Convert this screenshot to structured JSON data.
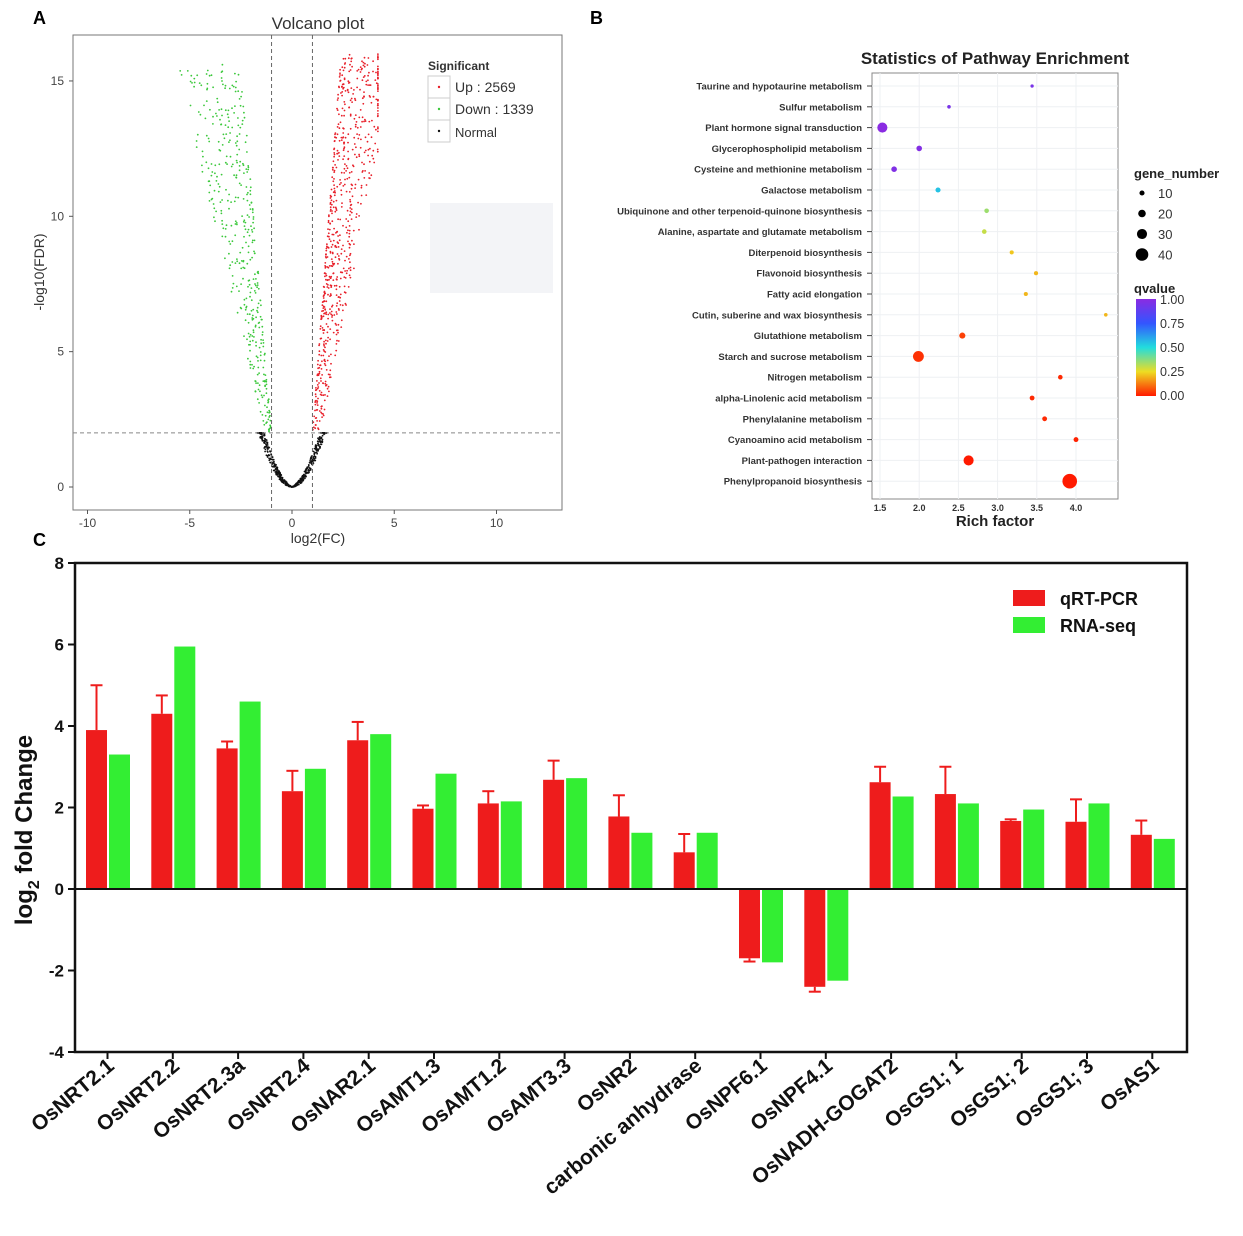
{
  "panel_labels": {
    "a": "A",
    "b": "B",
    "c": "C"
  },
  "chart_data": [
    {
      "type": "scatter",
      "title": "Volcano plot",
      "xlabel": "log2(FC)",
      "ylabel": "-log10(FDR)",
      "xlim": [
        -13,
        13
      ],
      "ylim": [
        -0.8,
        16.5
      ],
      "xticks": [
        -10,
        -5,
        0,
        5,
        10
      ],
      "yticks": [
        0,
        5,
        10,
        15
      ],
      "thresholds": {
        "log2fc": [
          -1,
          1
        ],
        "neg_log10_fdr": 2
      },
      "legend": {
        "title": "Significant",
        "entries": [
          {
            "name": "Up",
            "count": "2569",
            "label": "Up : 2569",
            "color": "#e8202a"
          },
          {
            "name": "Down",
            "count": "1339",
            "label": "Down : 1339",
            "color": "#3cc83c"
          },
          {
            "name": "Normal",
            "label": "Normal",
            "color": "#111111"
          }
        ],
        "placement": "top-right"
      },
      "series_colors": {
        "up": "#e8202a",
        "down": "#3cc83c",
        "normal": "#111111"
      }
    },
    {
      "type": "scatter",
      "title": "Statistics of Pathway Enrichment",
      "xlabel": "Rich factor",
      "xlim": [
        1.4,
        4.45
      ],
      "xticks": [
        "1.5",
        "2.0",
        "2.5",
        "3.0",
        "3.5",
        "4.0"
      ],
      "size_legend": {
        "title": "gene_number",
        "values": [
          10,
          20,
          30,
          40
        ]
      },
      "color_legend": {
        "title": "qvalue",
        "ticks": [
          "1.00",
          "0.75",
          "0.50",
          "0.25",
          "0.00"
        ]
      },
      "pathways": [
        {
          "name": "Taurine and hypotaurine metabolism",
          "rich_factor": 3.44,
          "gene_number": 3,
          "qvalue": 0.95
        },
        {
          "name": "Sulfur metabolism",
          "rich_factor": 2.38,
          "gene_number": 4,
          "qvalue": 0.95
        },
        {
          "name": "Plant hormone signal transduction",
          "rich_factor": 1.53,
          "gene_number": 30,
          "qvalue": 1.0
        },
        {
          "name": "Glycerophospholipid metabolism",
          "rich_factor": 2.0,
          "gene_number": 12,
          "qvalue": 0.98
        },
        {
          "name": "Cysteine and methionine metabolism",
          "rich_factor": 1.68,
          "gene_number": 12,
          "qvalue": 0.97
        },
        {
          "name": "Galactose metabolism",
          "rich_factor": 2.24,
          "gene_number": 10,
          "qvalue": 0.55
        },
        {
          "name": "Ubiquinone and other terpenoid-quinone biosynthesis",
          "rich_factor": 2.86,
          "gene_number": 8,
          "qvalue": 0.35
        },
        {
          "name": "Alanine, aspartate and glutamate metabolism",
          "rich_factor": 2.83,
          "gene_number": 8,
          "qvalue": 0.3
        },
        {
          "name": "Diterpenoid biosynthesis",
          "rich_factor": 3.18,
          "gene_number": 6,
          "qvalue": 0.22
        },
        {
          "name": "Flavonoid biosynthesis",
          "rich_factor": 3.49,
          "gene_number": 6,
          "qvalue": 0.2
        },
        {
          "name": "Fatty acid elongation",
          "rich_factor": 3.36,
          "gene_number": 6,
          "qvalue": 0.2
        },
        {
          "name": "Cutin, suberine and wax biosynthesis",
          "rich_factor": 4.38,
          "gene_number": 4,
          "qvalue": 0.2
        },
        {
          "name": "Glutathione metabolism",
          "rich_factor": 2.55,
          "gene_number": 14,
          "qvalue": 0.05
        },
        {
          "name": "Starch and sucrose metabolism",
          "rich_factor": 1.99,
          "gene_number": 33,
          "qvalue": 0.03
        },
        {
          "name": "Nitrogen metabolism",
          "rich_factor": 3.8,
          "gene_number": 8,
          "qvalue": 0.02
        },
        {
          "name": "alpha-Linolenic acid metabolism",
          "rich_factor": 3.44,
          "gene_number": 9,
          "qvalue": 0.02
        },
        {
          "name": "Phenylalanine metabolism",
          "rich_factor": 3.6,
          "gene_number": 9,
          "qvalue": 0.02
        },
        {
          "name": "Cyanoamino acid metabolism",
          "rich_factor": 4.0,
          "gene_number": 9,
          "qvalue": 0.01
        },
        {
          "name": "Plant-pathogen interaction",
          "rich_factor": 2.63,
          "gene_number": 30,
          "qvalue": 0.0
        },
        {
          "name": "Phenylpropanoid biosynthesis",
          "rich_factor": 3.92,
          "gene_number": 48,
          "qvalue": 0.0
        }
      ]
    },
    {
      "type": "bar",
      "ylabel_main": "log",
      "ylabel_sub": "2",
      "ylabel_rest": " fold Change",
      "ylim": [
        -4,
        8
      ],
      "yticks": [
        "-4",
        "-2",
        "0",
        "2",
        "4",
        "6",
        "8"
      ],
      "categories": [
        "OsNRT2.1",
        "OsNRT2.2",
        "OsNRT2.3a",
        "OsNRT2.4",
        "OsNAR2.1",
        "OsAMT1.3",
        "OsAMT1.2",
        "OsAMT3.3",
        "OsNR2",
        "carbonic anhydrase",
        "OsNPF6.1",
        "OsNPF4.1",
        "OsNADH-GOGAT2",
        "OsGS1; 1",
        "OsGS1; 2",
        "OsGS1; 3",
        "OsAS1"
      ],
      "series": [
        {
          "name": "qRT-PCR",
          "color": "#ee1c1c",
          "values": [
            3.9,
            4.3,
            3.45,
            2.4,
            3.65,
            1.97,
            2.1,
            2.68,
            1.78,
            0.9,
            -1.7,
            -2.4,
            2.62,
            2.33,
            1.67,
            1.65,
            1.33
          ],
          "error": [
            1.1,
            0.45,
            0.17,
            0.5,
            0.45,
            0.08,
            0.3,
            0.47,
            0.52,
            0.45,
            0.08,
            0.12,
            0.38,
            0.67,
            0.04,
            0.55,
            0.35
          ]
        },
        {
          "name": "RNA-seq",
          "color": "#33ee33",
          "values": [
            3.3,
            5.95,
            4.6,
            2.95,
            3.8,
            2.83,
            2.15,
            2.72,
            1.38,
            1.38,
            -1.8,
            -2.25,
            2.27,
            2.1,
            1.95,
            2.1,
            1.23
          ]
        }
      ],
      "legend_placement": "top-right"
    }
  ]
}
